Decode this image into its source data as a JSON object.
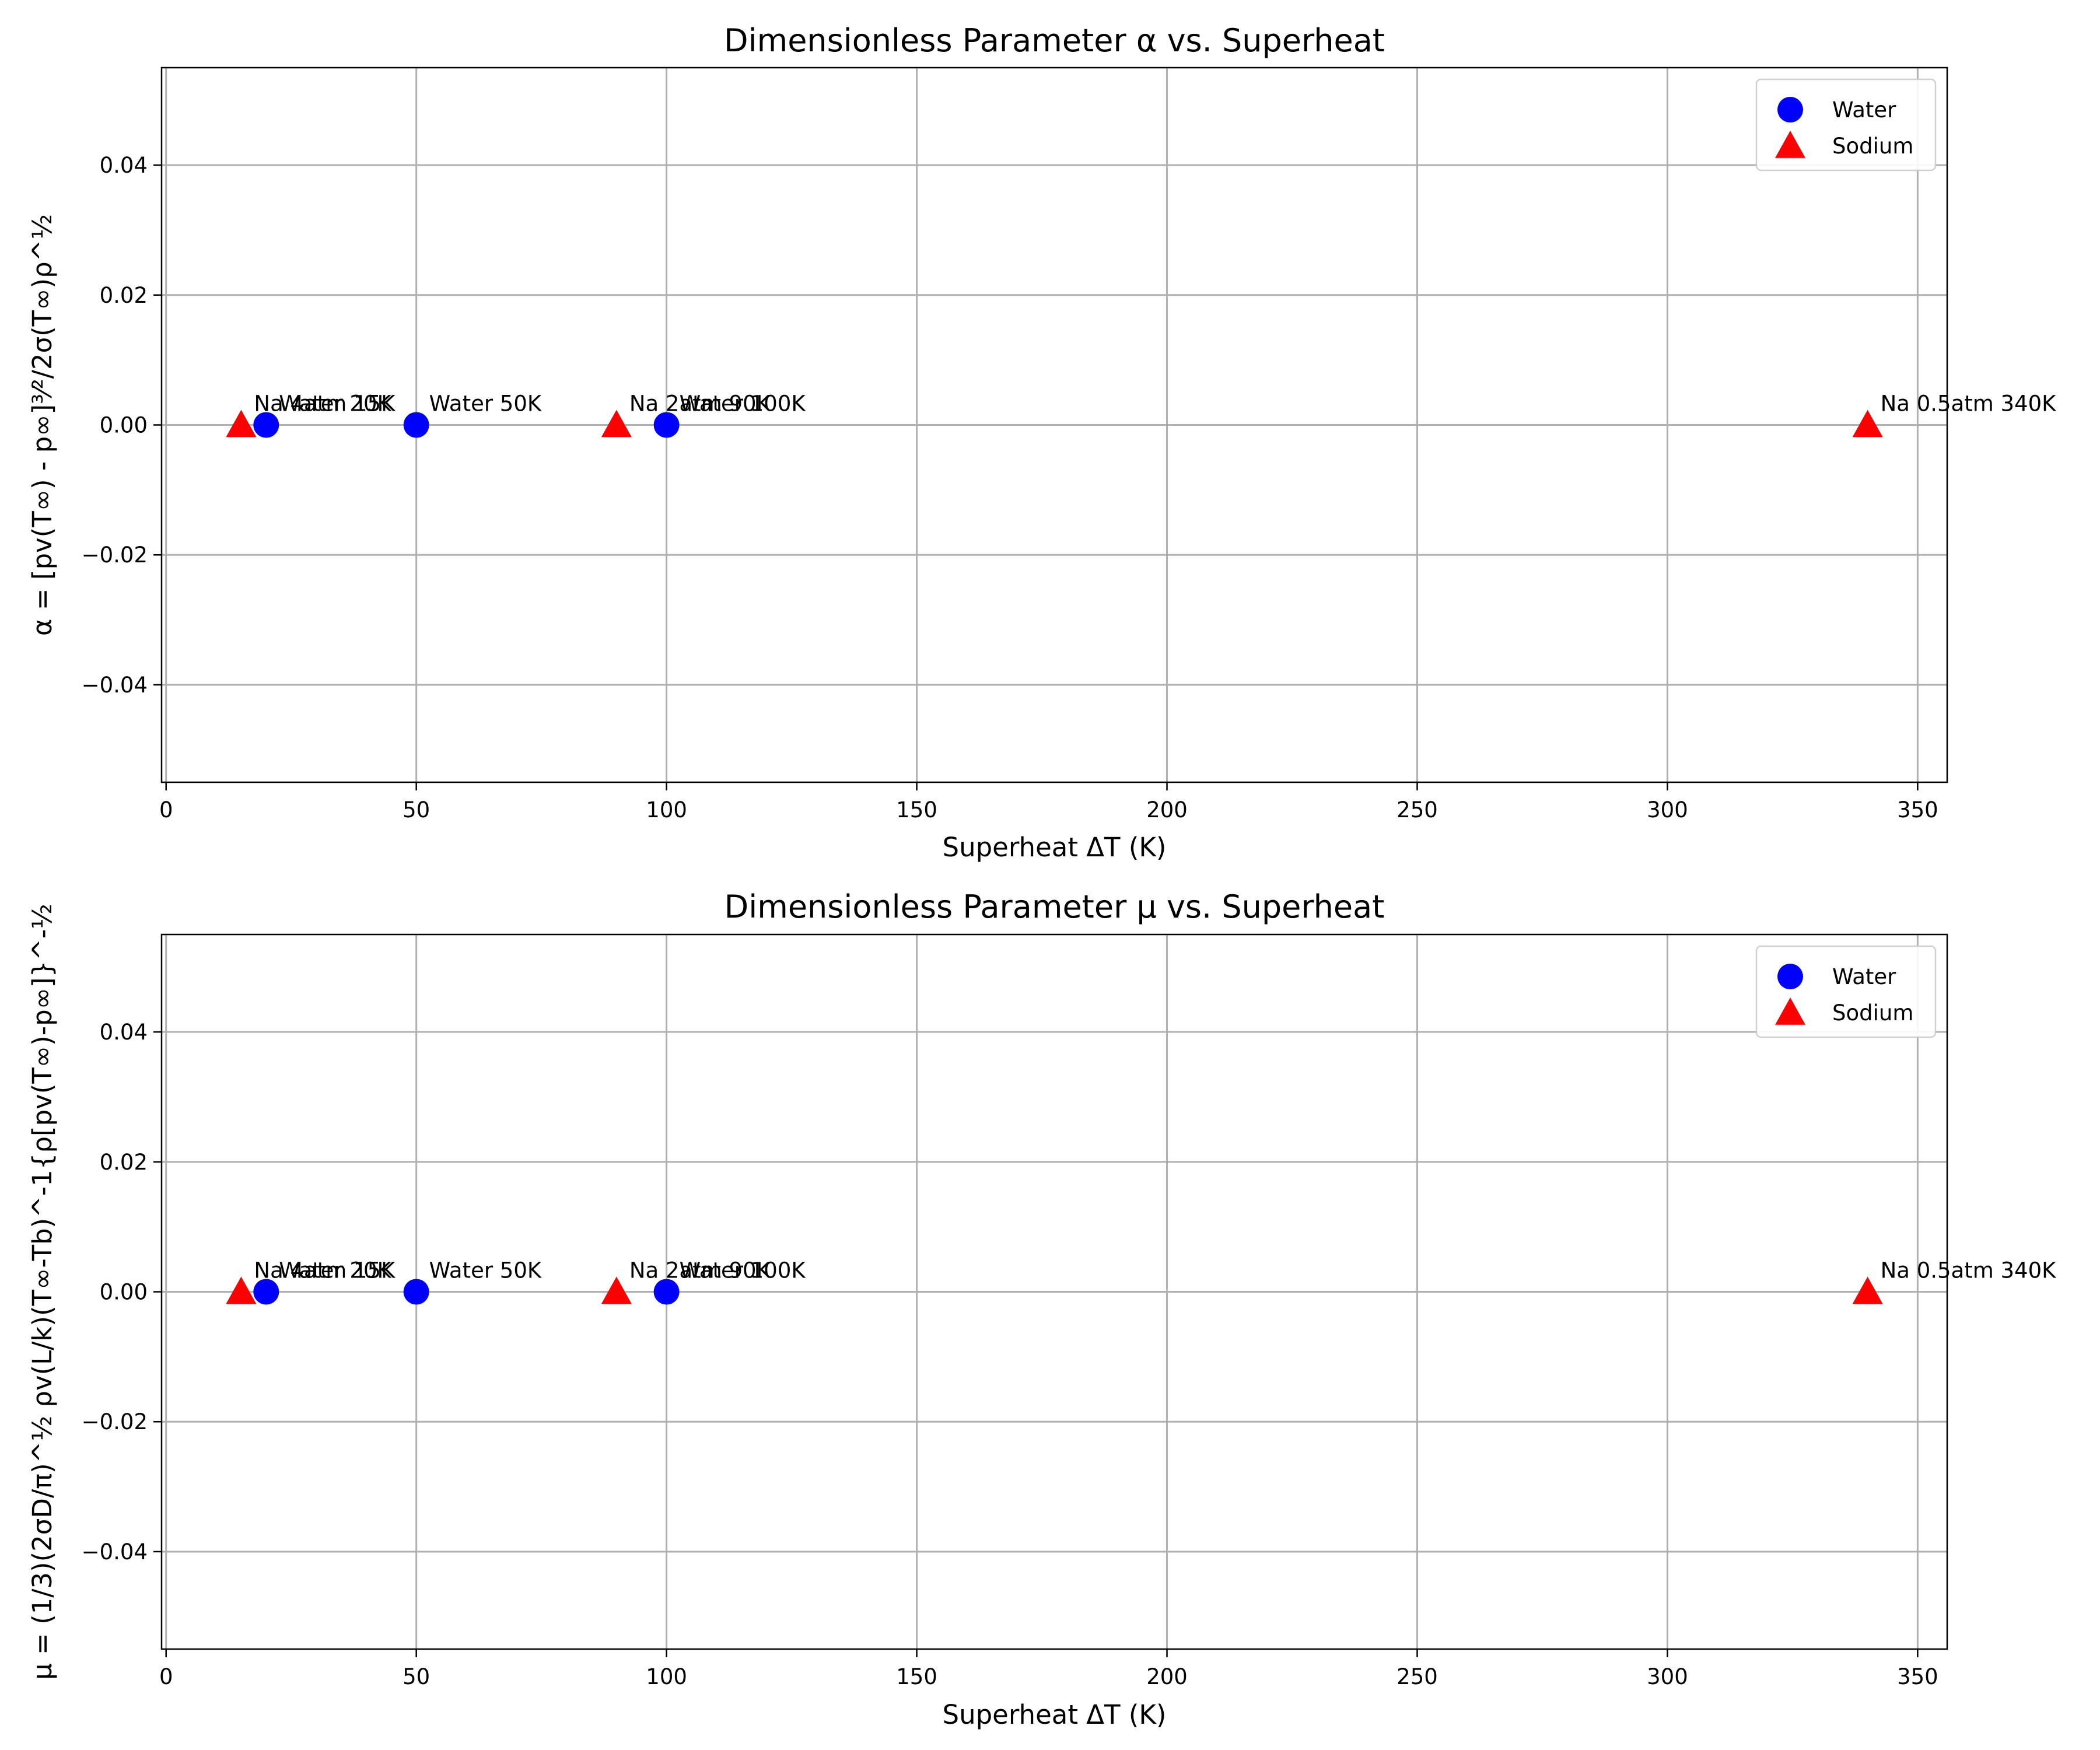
{
  "chart_data": [
    {
      "type": "scatter",
      "title": "Dimensionless Parameter α vs. Superheat",
      "xlabel": "Superheat ΔT (K)",
      "ylabel": "α = [pv(T∞) - p∞]³⁄²/2σ(T∞)ρ^½",
      "xlim": [
        -0.9,
        355.9
      ],
      "ylim": [
        -0.055,
        0.055
      ],
      "xticks": [
        0,
        50,
        100,
        150,
        200,
        250,
        300,
        350
      ],
      "xtick_labels": [
        "0",
        "50",
        "100",
        "150",
        "200",
        "250",
        "300",
        "350"
      ],
      "yticks": [
        0.04,
        0.02,
        0.0,
        -0.02,
        -0.04
      ],
      "ytick_labels": [
        "0.04",
        "0.02",
        "0.00",
        "−0.02",
        "−0.04"
      ],
      "grid": true,
      "legend_position": "top-right",
      "series": [
        {
          "name": "Water",
          "marker": "circle",
          "color": "#0000ff",
          "points": [
            {
              "x": 20,
              "y": 0.0,
              "label": "Water 20K"
            },
            {
              "x": 50,
              "y": 0.0,
              "label": "Water 50K"
            },
            {
              "x": 100,
              "y": 0.0,
              "label": "Water 100K"
            }
          ]
        },
        {
          "name": "Sodium",
          "marker": "triangle",
          "color": "#ff0000",
          "points": [
            {
              "x": 15,
              "y": 0.0,
              "label": "Na 4atm 15K"
            },
            {
              "x": 90,
              "y": 0.0,
              "label": "Na 2atm 90K"
            },
            {
              "x": 340,
              "y": 0.0,
              "label": "Na 0.5atm 340K"
            }
          ]
        }
      ]
    },
    {
      "type": "scatter",
      "title": "Dimensionless Parameter μ vs. Superheat",
      "xlabel": "Superheat ΔT (K)",
      "ylabel": "μ = (1/3)(2σD/π)^½ ρv(L/k)(T∞-Tb)^-1{ρ[pv(T∞)-p∞]}^-½",
      "xlim": [
        -0.9,
        355.9
      ],
      "ylim": [
        -0.055,
        0.055
      ],
      "xticks": [
        0,
        50,
        100,
        150,
        200,
        250,
        300,
        350
      ],
      "xtick_labels": [
        "0",
        "50",
        "100",
        "150",
        "200",
        "250",
        "300",
        "350"
      ],
      "yticks": [
        0.04,
        0.02,
        0.0,
        -0.02,
        -0.04
      ],
      "ytick_labels": [
        "0.04",
        "0.02",
        "0.00",
        "−0.02",
        "−0.04"
      ],
      "grid": true,
      "legend_position": "top-right",
      "series": [
        {
          "name": "Water",
          "marker": "circle",
          "color": "#0000ff",
          "points": [
            {
              "x": 20,
              "y": 0.0,
              "label": "Water 20K"
            },
            {
              "x": 50,
              "y": 0.0,
              "label": "Water 50K"
            },
            {
              "x": 100,
              "y": 0.0,
              "label": "Water 100K"
            }
          ]
        },
        {
          "name": "Sodium",
          "marker": "triangle",
          "color": "#ff0000",
          "points": [
            {
              "x": 15,
              "y": 0.0,
              "label": "Na 4atm 15K"
            },
            {
              "x": 90,
              "y": 0.0,
              "label": "Na 2atm 90K"
            },
            {
              "x": 340,
              "y": 0.0,
              "label": "Na 0.5atm 340K"
            }
          ]
        }
      ]
    }
  ]
}
